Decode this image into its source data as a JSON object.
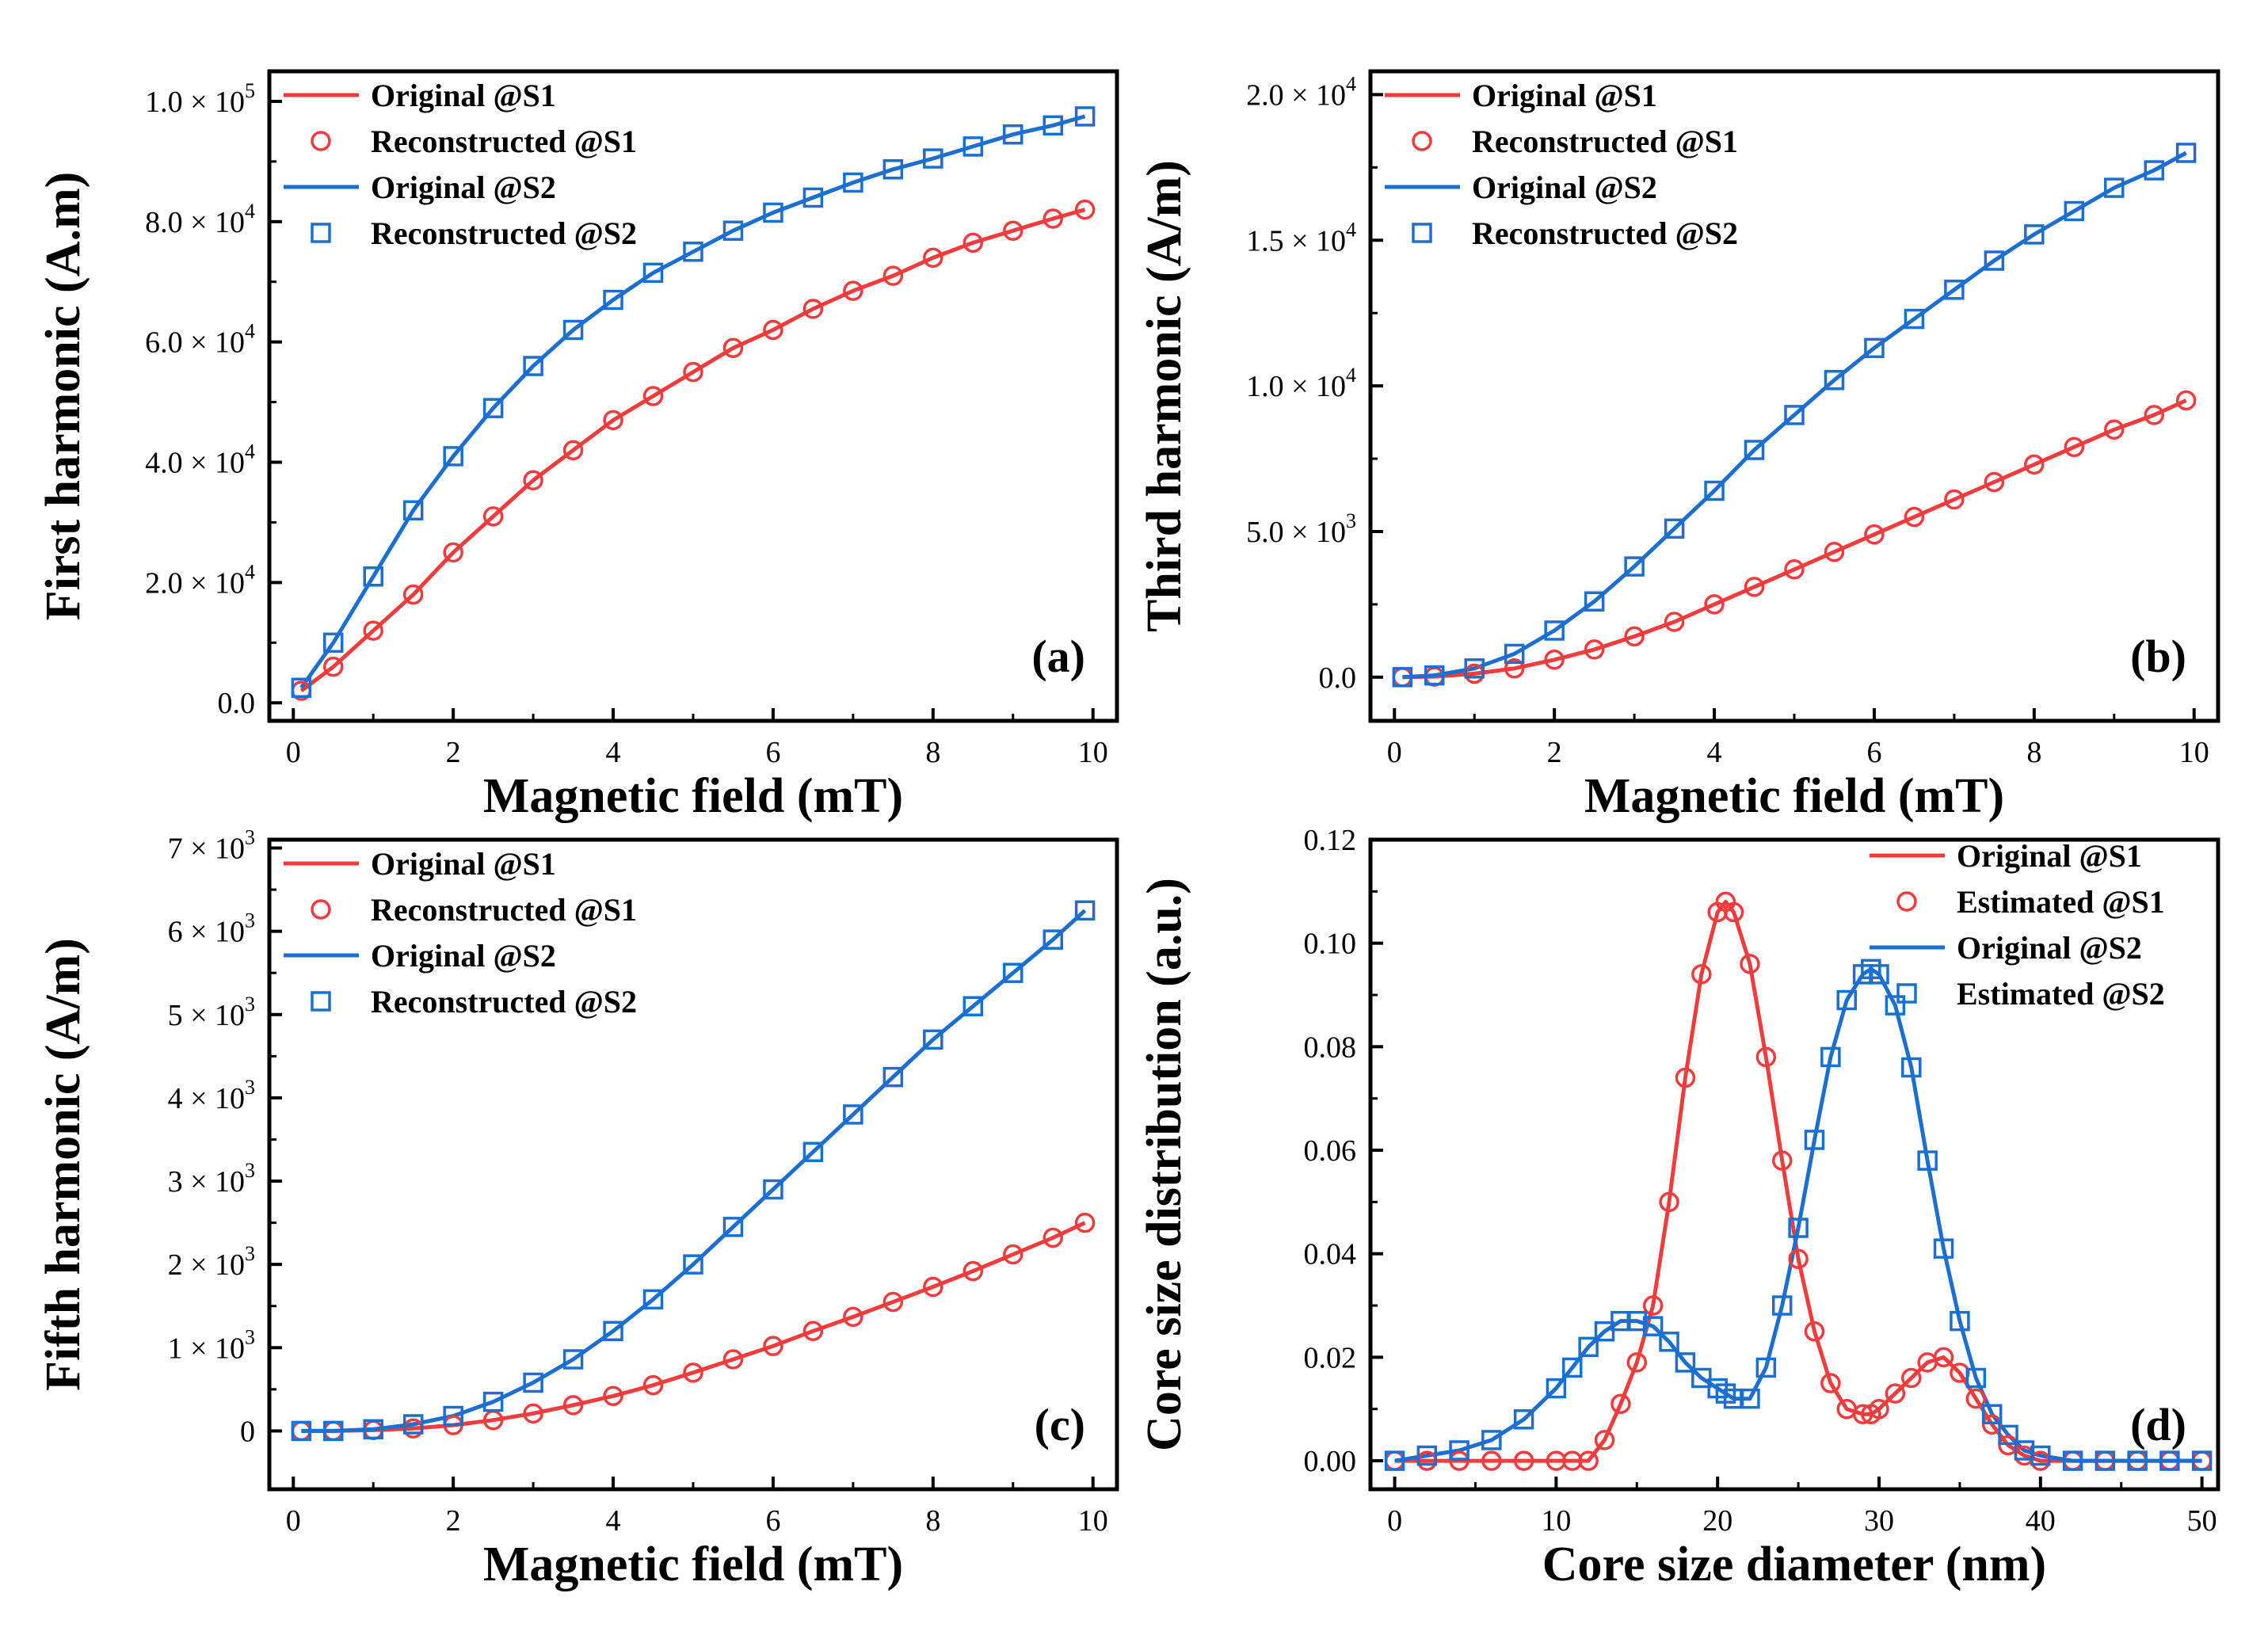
{
  "colors": {
    "s1": "#f03c3c",
    "s2": "#1a6fd0",
    "axis": "#000000"
  },
  "chart_data": [
    {
      "id": "a",
      "type": "line",
      "panel_label": "(a)",
      "xlabel": "Magnetic field (mT)",
      "ylabel": "First harmonic (A.m)",
      "xlim": [
        -0.3,
        10.3
      ],
      "ylim": [
        -3000,
        105000
      ],
      "xticks": [
        0,
        2,
        4,
        6,
        8,
        10
      ],
      "xtick_labels": [
        "0",
        "2",
        "4",
        "6",
        "8",
        "10"
      ],
      "yticks": [
        0,
        20000,
        40000,
        60000,
        80000,
        100000
      ],
      "ytick_labels": [
        {
          "text": "0.0"
        },
        {
          "mant": "2.0",
          "exp": "4"
        },
        {
          "mant": "4.0",
          "exp": "4"
        },
        {
          "mant": "6.0",
          "exp": "4"
        },
        {
          "mant": "8.0",
          "exp": "4"
        },
        {
          "mant": "1.0",
          "exp": "5"
        }
      ],
      "legend_position": "top-left",
      "x": [
        0.1,
        0.5,
        1,
        1.5,
        2,
        2.5,
        3,
        3.5,
        4,
        4.5,
        5,
        5.5,
        6,
        6.5,
        7,
        7.5,
        8,
        8.5,
        9,
        9.5,
        9.9
      ],
      "series": [
        {
          "name": "Original @S1",
          "style": "line",
          "color_key": "s1",
          "values": [
            2000,
            6000,
            12000,
            18000,
            25000,
            31000,
            37000,
            42000,
            47000,
            51000,
            55000,
            59000,
            62000,
            65500,
            68500,
            71000,
            74000,
            76500,
            78500,
            80500,
            82000
          ]
        },
        {
          "name": "Reconstructed @S1",
          "style": "circle",
          "color_key": "s1",
          "values": [
            2000,
            6000,
            12000,
            18000,
            25000,
            31000,
            37000,
            42000,
            47000,
            51000,
            55000,
            59000,
            62000,
            65500,
            68500,
            71000,
            74000,
            76500,
            78500,
            80500,
            82000
          ]
        },
        {
          "name": "Original @S2",
          "style": "line",
          "color_key": "s2",
          "values": [
            2500,
            10000,
            21000,
            32000,
            41000,
            49000,
            56000,
            62000,
            67000,
            71500,
            75000,
            78500,
            81500,
            84000,
            86500,
            88700,
            90500,
            92500,
            94500,
            96000,
            97500
          ]
        },
        {
          "name": "Reconstructed @S2",
          "style": "square",
          "color_key": "s2",
          "values": [
            2500,
            10000,
            21000,
            32000,
            41000,
            49000,
            56000,
            62000,
            67000,
            71500,
            75000,
            78500,
            81500,
            84000,
            86500,
            88700,
            90500,
            92500,
            94500,
            96000,
            97500
          ]
        }
      ]
    },
    {
      "id": "b",
      "type": "line",
      "panel_label": "(b)",
      "xlabel": "Magnetic field (mT)",
      "ylabel": "Third harmonic (A/m)",
      "xlim": [
        -0.3,
        10.3
      ],
      "ylim": [
        -1500,
        20800
      ],
      "xticks": [
        0,
        2,
        4,
        6,
        8,
        10
      ],
      "xtick_labels": [
        "0",
        "2",
        "4",
        "6",
        "8",
        "10"
      ],
      "yticks": [
        0,
        5000,
        10000,
        15000,
        20000
      ],
      "ytick_labels": [
        {
          "text": "0.0"
        },
        {
          "mant": "5.0",
          "exp": "3"
        },
        {
          "mant": "1.0",
          "exp": "4"
        },
        {
          "mant": "1.5",
          "exp": "4"
        },
        {
          "mant": "2.0",
          "exp": "4"
        }
      ],
      "legend_position": "top-left",
      "x": [
        0.1,
        0.5,
        1,
        1.5,
        2,
        2.5,
        3,
        3.5,
        4,
        4.5,
        5,
        5.5,
        6,
        6.5,
        7,
        7.5,
        8,
        8.5,
        9,
        9.5,
        9.9
      ],
      "series": [
        {
          "name": "Original @S1",
          "style": "line",
          "color_key": "s1",
          "values": [
            0,
            20,
            120,
            300,
            600,
            950,
            1400,
            1900,
            2500,
            3100,
            3700,
            4300,
            4900,
            5500,
            6100,
            6700,
            7300,
            7900,
            8500,
            9000,
            9500
          ]
        },
        {
          "name": "Reconstructed @S1",
          "style": "circle",
          "color_key": "s1",
          "values": [
            0,
            20,
            120,
            300,
            600,
            950,
            1400,
            1900,
            2500,
            3100,
            3700,
            4300,
            4900,
            5500,
            6100,
            6700,
            7300,
            7900,
            8500,
            9000,
            9500
          ]
        },
        {
          "name": "Original @S2",
          "style": "line",
          "color_key": "s2",
          "values": [
            0,
            60,
            300,
            800,
            1600,
            2600,
            3800,
            5100,
            6400,
            7800,
            9000,
            10200,
            11300,
            12300,
            13300,
            14300,
            15200,
            16000,
            16800,
            17400,
            18000
          ]
        },
        {
          "name": "Reconstructed @S2",
          "style": "square",
          "color_key": "s2",
          "values": [
            0,
            60,
            300,
            800,
            1600,
            2600,
            3800,
            5100,
            6400,
            7800,
            9000,
            10200,
            11300,
            12300,
            13300,
            14300,
            15200,
            16000,
            16800,
            17400,
            18000
          ]
        }
      ]
    },
    {
      "id": "c",
      "type": "line",
      "panel_label": "(c)",
      "xlabel": "Magnetic field (mT)",
      "ylabel": "Fifth harmonic (A/m)",
      "xlim": [
        -0.3,
        10.3
      ],
      "ylim": [
        -700,
        7100
      ],
      "xticks": [
        0,
        2,
        4,
        6,
        8,
        10
      ],
      "xtick_labels": [
        "0",
        "2",
        "4",
        "6",
        "8",
        "10"
      ],
      "yticks": [
        0,
        1000,
        2000,
        3000,
        4000,
        5000,
        6000,
        7000
      ],
      "ytick_labels": [
        {
          "text": "0"
        },
        {
          "mant": "1",
          "exp": "3"
        },
        {
          "mant": "2",
          "exp": "3"
        },
        {
          "mant": "3",
          "exp": "3"
        },
        {
          "mant": "4",
          "exp": "3"
        },
        {
          "mant": "5",
          "exp": "3"
        },
        {
          "mant": "6",
          "exp": "3"
        },
        {
          "mant": "7",
          "exp": "3"
        }
      ],
      "legend_position": "top-left",
      "x": [
        0.1,
        0.5,
        1,
        1.5,
        2,
        2.5,
        3,
        3.5,
        4,
        4.5,
        5,
        5.5,
        6,
        6.5,
        7,
        7.5,
        8,
        8.5,
        9,
        9.5,
        9.9
      ],
      "series": [
        {
          "name": "Original @S1",
          "style": "line",
          "color_key": "s1",
          "values": [
            0,
            0,
            10,
            30,
            70,
            130,
            210,
            310,
            420,
            550,
            700,
            860,
            1020,
            1200,
            1370,
            1550,
            1730,
            1920,
            2120,
            2320,
            2500
          ]
        },
        {
          "name": "Reconstructed @S1",
          "style": "circle",
          "color_key": "s1",
          "values": [
            0,
            0,
            10,
            30,
            70,
            130,
            210,
            310,
            420,
            550,
            700,
            860,
            1020,
            1200,
            1370,
            1550,
            1730,
            1920,
            2120,
            2320,
            2500
          ]
        },
        {
          "name": "Original @S2",
          "style": "line",
          "color_key": "s2",
          "values": [
            0,
            0,
            20,
            80,
            180,
            350,
            580,
            860,
            1200,
            1580,
            2000,
            2450,
            2900,
            3350,
            3800,
            4250,
            4700,
            5100,
            5500,
            5900,
            6250
          ]
        },
        {
          "name": "Reconstructed @S2",
          "style": "square",
          "color_key": "s2",
          "values": [
            0,
            0,
            20,
            80,
            180,
            350,
            580,
            860,
            1200,
            1580,
            2000,
            2450,
            2900,
            3350,
            3800,
            4250,
            4700,
            5100,
            5500,
            5900,
            6250
          ]
        }
      ]
    },
    {
      "id": "d",
      "type": "line",
      "panel_label": "(d)",
      "xlabel": "Core size diameter (nm)",
      "ylabel": "Core size distribution (a.u.)",
      "xlim": [
        -1.5,
        51
      ],
      "ylim": [
        -0.0055,
        0.12
      ],
      "xticks": [
        0,
        10,
        20,
        30,
        40,
        50
      ],
      "xtick_labels": [
        "0",
        "10",
        "20",
        "30",
        "40",
        "50"
      ],
      "yticks": [
        0,
        0.02,
        0.04,
        0.06,
        0.08,
        0.1,
        0.12
      ],
      "ytick_labels": [
        {
          "text": "0.00"
        },
        {
          "text": "0.02"
        },
        {
          "text": "0.04"
        },
        {
          "text": "0.06"
        },
        {
          "text": "0.08"
        },
        {
          "text": "0.10"
        },
        {
          "text": "0.12"
        }
      ],
      "legend_position": "top-right",
      "x": [
        0,
        2,
        4,
        6,
        8,
        10,
        11,
        12,
        13,
        14,
        15,
        16,
        17,
        18,
        19,
        20,
        20.5,
        21,
        22,
        23,
        24,
        25,
        26,
        27,
        28,
        29,
        29.5,
        30,
        31,
        32,
        33,
        34,
        35,
        36,
        37,
        38,
        39,
        40,
        42,
        44,
        46,
        48,
        50
      ],
      "series": [
        {
          "name": "Original @S1",
          "style": "line",
          "color_key": "s1",
          "values": [
            0,
            0,
            0,
            0,
            0,
            0,
            0,
            0,
            0.004,
            0.011,
            0.019,
            0.03,
            0.05,
            0.074,
            0.094,
            0.106,
            0.108,
            0.106,
            0.096,
            0.078,
            0.058,
            0.039,
            0.025,
            0.015,
            0.01,
            0.009,
            0.009,
            0.01,
            0.013,
            0.016,
            0.019,
            0.02,
            0.017,
            0.012,
            0.007,
            0.003,
            0.001,
            0,
            0,
            0,
            0,
            0,
            0
          ]
        },
        {
          "name": "Estimated @S1",
          "style": "circle",
          "color_key": "s1",
          "values": [
            0,
            0,
            0,
            0,
            0,
            0,
            0,
            0,
            0.004,
            0.011,
            0.019,
            0.03,
            0.05,
            0.074,
            0.094,
            0.106,
            0.108,
            0.106,
            0.096,
            0.078,
            0.058,
            0.039,
            0.025,
            0.015,
            0.01,
            0.009,
            0.009,
            0.01,
            0.013,
            0.016,
            0.019,
            0.02,
            0.017,
            0.012,
            0.007,
            0.003,
            0.001,
            0,
            0,
            0,
            0,
            0,
            0
          ]
        },
        {
          "name": "Original @S2",
          "style": "line",
          "color_key": "s2",
          "values": [
            0,
            0.001,
            0.002,
            0.004,
            0.008,
            0.014,
            0.018,
            0.022,
            0.025,
            0.027,
            0.027,
            0.026,
            0.023,
            0.019,
            0.016,
            0.014,
            0.013,
            0.012,
            0.012,
            0.018,
            0.03,
            0.045,
            0.062,
            0.078,
            0.089,
            0.094,
            0.095,
            0.094,
            0.088,
            0.076,
            0.058,
            0.041,
            0.027,
            0.016,
            0.009,
            0.005,
            0.002,
            0.001,
            0,
            0,
            0,
            0,
            0
          ]
        },
        {
          "name": "Estimated @S2",
          "style": "square",
          "color_key": "s2",
          "values": [
            0,
            0.001,
            0.002,
            0.004,
            0.008,
            0.014,
            0.018,
            0.022,
            0.025,
            0.027,
            0.027,
            0.026,
            0.023,
            0.019,
            0.016,
            0.014,
            0.013,
            0.012,
            0.012,
            0.018,
            0.03,
            0.045,
            0.062,
            0.078,
            0.089,
            0.094,
            0.095,
            0.094,
            0.088,
            0.076,
            0.058,
            0.041,
            0.027,
            0.016,
            0.009,
            0.005,
            0.002,
            0.001,
            0,
            0,
            0,
            0,
            0
          ]
        }
      ]
    }
  ]
}
